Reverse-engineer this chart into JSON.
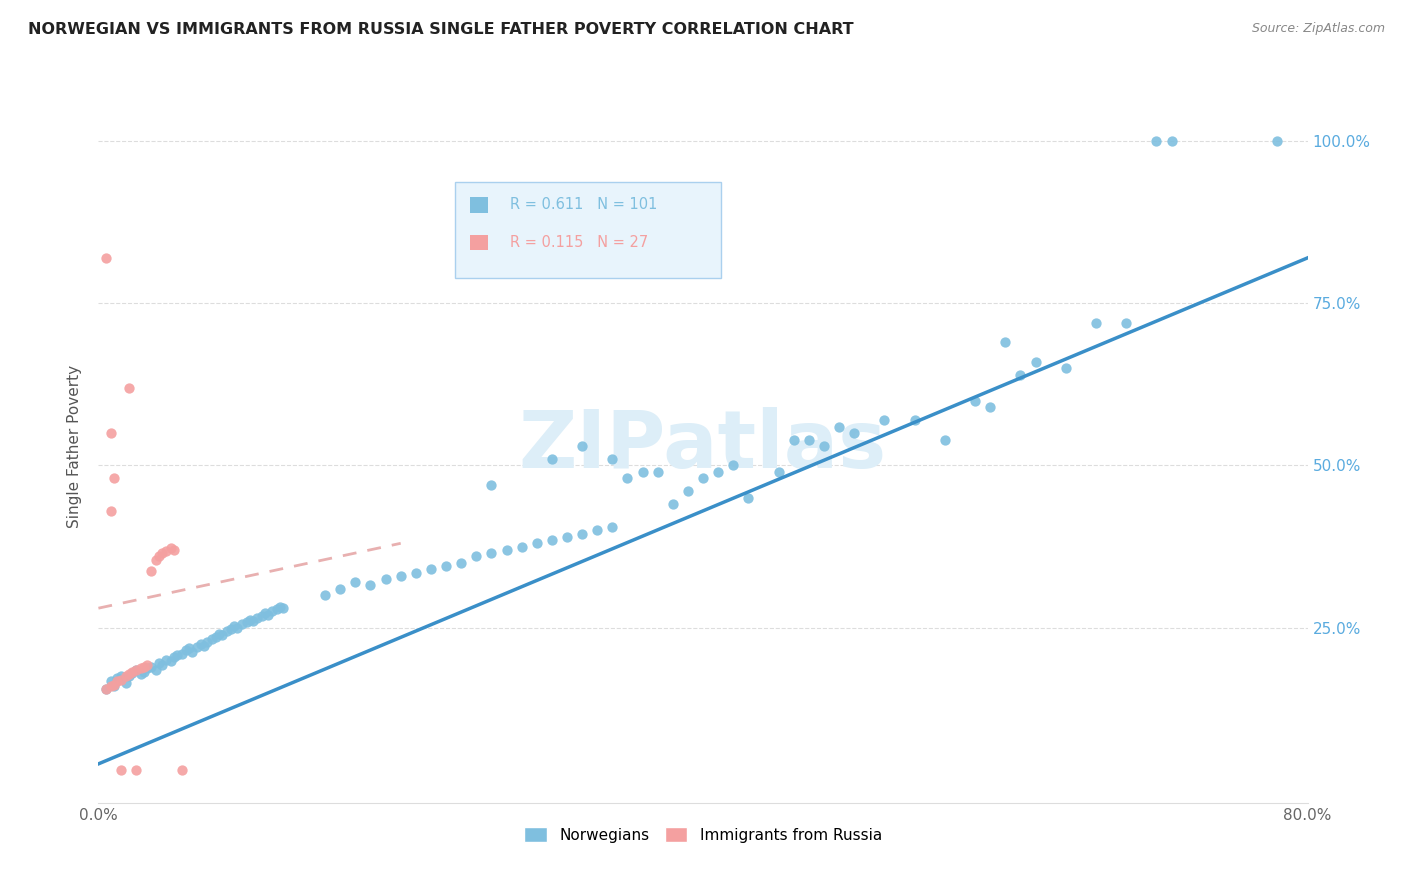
{
  "title": "NORWEGIAN VS IMMIGRANTS FROM RUSSIA SINGLE FATHER POVERTY CORRELATION CHART",
  "source": "Source: ZipAtlas.com",
  "ylabel_label": "Single Father Poverty",
  "x_min": 0.0,
  "x_max": 0.8,
  "y_min": -0.02,
  "y_max": 1.08,
  "norwegian_R": 0.611,
  "norwegian_N": 101,
  "russia_R": 0.115,
  "russia_N": 27,
  "norwegian_color": "#7fbfdf",
  "russia_color": "#f4a0a0",
  "norwegian_line_color": "#3a8fc8",
  "russia_line_color": "#e8b0b0",
  "watermark_text": "ZIPatlas",
  "watermark_color": "#ddeef8",
  "background_color": "#ffffff",
  "legend_box_facecolor": "#e8f4fc",
  "legend_box_edgecolor": "#aad0ee",
  "grid_color": "#dddddd",
  "title_color": "#222222",
  "source_color": "#888888",
  "tick_color": "#666666",
  "ylabel_color": "#555555",
  "right_tick_color": "#5aabdf",
  "norwegian_scatter": [
    [
      0.005,
      0.155
    ],
    [
      0.008,
      0.168
    ],
    [
      0.01,
      0.16
    ],
    [
      0.012,
      0.172
    ],
    [
      0.015,
      0.175
    ],
    [
      0.018,
      0.165
    ],
    [
      0.02,
      0.175
    ],
    [
      0.022,
      0.18
    ],
    [
      0.025,
      0.185
    ],
    [
      0.028,
      0.178
    ],
    [
      0.03,
      0.182
    ],
    [
      0.032,
      0.188
    ],
    [
      0.035,
      0.19
    ],
    [
      0.038,
      0.185
    ],
    [
      0.04,
      0.195
    ],
    [
      0.042,
      0.192
    ],
    [
      0.045,
      0.2
    ],
    [
      0.048,
      0.198
    ],
    [
      0.05,
      0.205
    ],
    [
      0.052,
      0.208
    ],
    [
      0.055,
      0.21
    ],
    [
      0.058,
      0.215
    ],
    [
      0.06,
      0.218
    ],
    [
      0.062,
      0.212
    ],
    [
      0.065,
      0.22
    ],
    [
      0.068,
      0.225
    ],
    [
      0.07,
      0.222
    ],
    [
      0.072,
      0.228
    ],
    [
      0.075,
      0.232
    ],
    [
      0.078,
      0.235
    ],
    [
      0.08,
      0.24
    ],
    [
      0.082,
      0.238
    ],
    [
      0.085,
      0.245
    ],
    [
      0.088,
      0.248
    ],
    [
      0.09,
      0.252
    ],
    [
      0.092,
      0.25
    ],
    [
      0.095,
      0.255
    ],
    [
      0.098,
      0.258
    ],
    [
      0.1,
      0.262
    ],
    [
      0.102,
      0.26
    ],
    [
      0.105,
      0.265
    ],
    [
      0.108,
      0.268
    ],
    [
      0.11,
      0.272
    ],
    [
      0.112,
      0.27
    ],
    [
      0.115,
      0.275
    ],
    [
      0.118,
      0.278
    ],
    [
      0.12,
      0.282
    ],
    [
      0.122,
      0.28
    ],
    [
      0.15,
      0.3
    ],
    [
      0.16,
      0.31
    ],
    [
      0.17,
      0.32
    ],
    [
      0.18,
      0.315
    ],
    [
      0.19,
      0.325
    ],
    [
      0.2,
      0.33
    ],
    [
      0.21,
      0.335
    ],
    [
      0.22,
      0.34
    ],
    [
      0.23,
      0.345
    ],
    [
      0.24,
      0.35
    ],
    [
      0.25,
      0.36
    ],
    [
      0.26,
      0.365
    ],
    [
      0.27,
      0.37
    ],
    [
      0.28,
      0.375
    ],
    [
      0.29,
      0.38
    ],
    [
      0.3,
      0.385
    ],
    [
      0.31,
      0.39
    ],
    [
      0.32,
      0.395
    ],
    [
      0.33,
      0.4
    ],
    [
      0.34,
      0.405
    ],
    [
      0.26,
      0.47
    ],
    [
      0.3,
      0.51
    ],
    [
      0.32,
      0.53
    ],
    [
      0.34,
      0.51
    ],
    [
      0.36,
      0.49
    ],
    [
      0.38,
      0.44
    ],
    [
      0.4,
      0.48
    ],
    [
      0.42,
      0.5
    ],
    [
      0.35,
      0.48
    ],
    [
      0.37,
      0.49
    ],
    [
      0.39,
      0.46
    ],
    [
      0.41,
      0.49
    ],
    [
      0.43,
      0.45
    ],
    [
      0.45,
      0.49
    ],
    [
      0.46,
      0.54
    ],
    [
      0.47,
      0.54
    ],
    [
      0.48,
      0.53
    ],
    [
      0.49,
      0.56
    ],
    [
      0.5,
      0.55
    ],
    [
      0.52,
      0.57
    ],
    [
      0.54,
      0.57
    ],
    [
      0.56,
      0.54
    ],
    [
      0.58,
      0.6
    ],
    [
      0.59,
      0.59
    ],
    [
      0.6,
      0.69
    ],
    [
      0.61,
      0.64
    ],
    [
      0.62,
      0.66
    ],
    [
      0.64,
      0.65
    ],
    [
      0.66,
      0.72
    ],
    [
      0.68,
      0.72
    ],
    [
      0.7,
      1.0
    ],
    [
      0.71,
      1.0
    ],
    [
      0.78,
      1.0
    ]
  ],
  "russia_scatter": [
    [
      0.005,
      0.155
    ],
    [
      0.008,
      0.16
    ],
    [
      0.01,
      0.162
    ],
    [
      0.012,
      0.168
    ],
    [
      0.015,
      0.17
    ],
    [
      0.018,
      0.175
    ],
    [
      0.02,
      0.178
    ],
    [
      0.022,
      0.182
    ],
    [
      0.025,
      0.185
    ],
    [
      0.028,
      0.188
    ],
    [
      0.03,
      0.19
    ],
    [
      0.032,
      0.192
    ],
    [
      0.035,
      0.338
    ],
    [
      0.038,
      0.355
    ],
    [
      0.04,
      0.36
    ],
    [
      0.042,
      0.365
    ],
    [
      0.045,
      0.368
    ],
    [
      0.048,
      0.372
    ],
    [
      0.05,
      0.37
    ],
    [
      0.008,
      0.55
    ],
    [
      0.01,
      0.48
    ],
    [
      0.015,
      0.03
    ],
    [
      0.025,
      0.03
    ],
    [
      0.055,
      0.03
    ],
    [
      0.005,
      0.82
    ],
    [
      0.02,
      0.62
    ],
    [
      0.008,
      0.43
    ]
  ],
  "russia_line_x": [
    0.0,
    0.3
  ],
  "nor_line_x_start": 0.0,
  "nor_line_x_end": 0.8
}
